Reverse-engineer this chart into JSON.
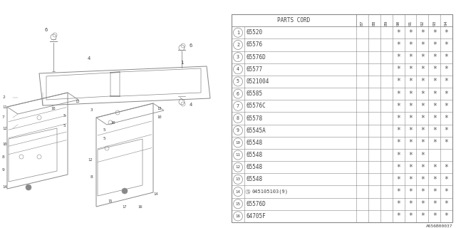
{
  "watermark": "A656B00037",
  "col_headers": [
    "87",
    "88",
    "89",
    "90",
    "91",
    "92",
    "93",
    "94"
  ],
  "rows": [
    {
      "num": "1",
      "part": "65520",
      "cols": [
        false,
        false,
        false,
        true,
        true,
        true,
        true,
        true
      ]
    },
    {
      "num": "2",
      "part": "65576",
      "cols": [
        false,
        false,
        false,
        true,
        true,
        true,
        true,
        true
      ]
    },
    {
      "num": "3",
      "part": "65576D",
      "cols": [
        false,
        false,
        false,
        true,
        true,
        true,
        true,
        true
      ]
    },
    {
      "num": "4",
      "part": "65577",
      "cols": [
        false,
        false,
        false,
        true,
        true,
        true,
        true,
        true
      ]
    },
    {
      "num": "5",
      "part": "0521004",
      "cols": [
        false,
        false,
        false,
        true,
        true,
        true,
        true,
        true
      ]
    },
    {
      "num": "6",
      "part": "65585",
      "cols": [
        false,
        false,
        false,
        true,
        true,
        true,
        true,
        true
      ]
    },
    {
      "num": "7",
      "part": "65576C",
      "cols": [
        false,
        false,
        false,
        true,
        true,
        true,
        true,
        true
      ]
    },
    {
      "num": "8",
      "part": "65578",
      "cols": [
        false,
        false,
        false,
        true,
        true,
        true,
        true,
        true
      ]
    },
    {
      "num": "9",
      "part": "65545A",
      "cols": [
        false,
        false,
        false,
        true,
        true,
        true,
        true,
        true
      ]
    },
    {
      "num": "10",
      "part": "65548",
      "cols": [
        false,
        false,
        false,
        true,
        true,
        true,
        true,
        true
      ]
    },
    {
      "num": "11",
      "part": "65548",
      "cols": [
        false,
        false,
        false,
        true,
        true,
        true,
        false,
        false
      ]
    },
    {
      "num": "12",
      "part": "65548",
      "cols": [
        false,
        false,
        false,
        true,
        true,
        true,
        true,
        true
      ]
    },
    {
      "num": "13",
      "part": "65548",
      "cols": [
        false,
        false,
        false,
        true,
        true,
        true,
        true,
        true
      ]
    },
    {
      "num": "14",
      "part": "S045105103(9)",
      "cols": [
        false,
        false,
        false,
        true,
        true,
        true,
        true,
        true
      ]
    },
    {
      "num": "15",
      "part": "65576D",
      "cols": [
        false,
        false,
        false,
        true,
        true,
        true,
        true,
        true
      ]
    },
    {
      "num": "16",
      "part": "64705F",
      "cols": [
        false,
        false,
        false,
        true,
        true,
        true,
        true,
        true
      ]
    }
  ],
  "bg_color": "#ffffff",
  "line_color": "#888888",
  "text_color": "#444444",
  "star_color": "#555555"
}
